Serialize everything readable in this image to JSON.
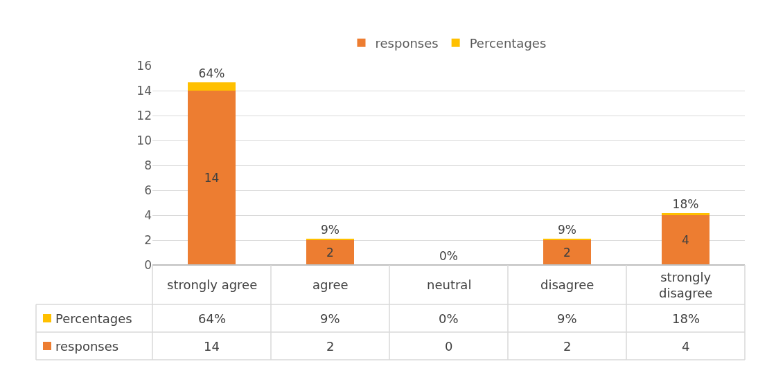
{
  "chart_data": {
    "type": "bar",
    "stacked": true,
    "categories": [
      "strongly agree",
      "agree",
      "neutral",
      "disagree",
      "strongly disagree"
    ],
    "series": [
      {
        "name": "responses",
        "color": "#ed7d31",
        "values": [
          14,
          2,
          0,
          2,
          4
        ],
        "value_labels": [
          "14",
          "2",
          "0",
          "2",
          "4"
        ]
      },
      {
        "name": "Percentages",
        "color": "#ffc000",
        "values": [
          0.64,
          0.09,
          0,
          0.09,
          0.18
        ],
        "value_labels": [
          "64%",
          "9%",
          "0%",
          "9%",
          "18%"
        ]
      }
    ],
    "ylim": [
      0,
      16
    ],
    "yticks": [
      0,
      2,
      4,
      6,
      8,
      10,
      12,
      14,
      16
    ],
    "grid": "y",
    "legend": "top"
  }
}
